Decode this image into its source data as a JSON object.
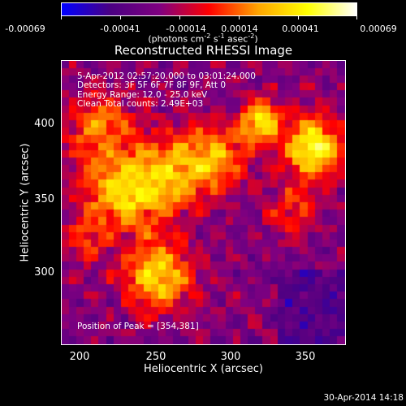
{
  "colorbar": {
    "ticks": [
      "-0.00069",
      "-0.00041",
      "-0.00014",
      "0.00014",
      "0.00041",
      "0.00069"
    ],
    "units": {
      "pre": "(photons cm",
      "e1": "-2",
      "mid1": " s",
      "e2": "-1",
      "mid2": " asec",
      "e3": "-2",
      "post": ")"
    }
  },
  "plot": {
    "title": "Reconstructed RHESSI Image",
    "annotations": {
      "time": "5-Apr-2012 02:57:20.000 to 03:01:24.000",
      "detectors": "Detectors: 3F 5F 6F 7F 8F 9F, Att 0",
      "energy": "Energy Range: 12.0 - 25.0 keV",
      "clean": "Clean     Total counts: 2.49E+03",
      "peak": "Position of Peak = [354,381]"
    },
    "x_axis": {
      "label": "Heliocentric X (arcsec)",
      "ticks": [
        "200",
        "250",
        "300",
        "350"
      ]
    },
    "y_axis": {
      "label": "Heliocentric Y (arcsec)",
      "ticks": [
        "400",
        "350",
        "300"
      ]
    }
  },
  "footer": {
    "timestamp": "30-Apr-2014 14:18"
  },
  "chart_data": {
    "type": "heatmap",
    "title": "Reconstructed RHESSI Image",
    "xlabel": "Heliocentric X (arcsec)",
    "ylabel": "Heliocentric Y (arcsec)",
    "xlim": [
      185,
      375
    ],
    "ylim": [
      250,
      440
    ],
    "color_range": [
      -0.00069,
      0.00069
    ],
    "colormap": [
      "#0000ff",
      "#4b0082",
      "#800080",
      "#ff0000",
      "#ffa500",
      "#ffff00",
      "#ffffff"
    ],
    "peak": [
      354,
      381
    ]
  }
}
